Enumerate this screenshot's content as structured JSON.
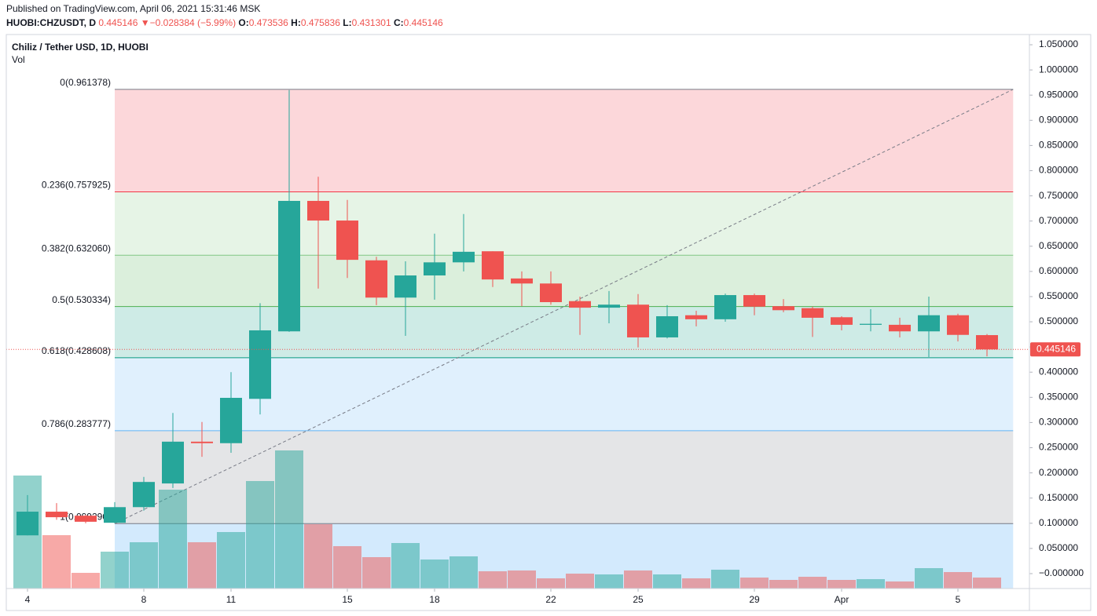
{
  "header": {
    "published": "Published on TradingView.com, April 06, 2021 15:31:46 MSK",
    "symbol": "HUOBI:CHZUSDT, D",
    "last": "0.445146",
    "arrow": "▼",
    "change": "−0.028384 (−5.99%)",
    "o_label": "O:",
    "o": "0.473536",
    "h_label": "H:",
    "h": "0.475836",
    "l_label": "L:",
    "l": "0.431301",
    "c_label": "C:",
    "c": "0.445146"
  },
  "chart_data": {
    "type": "candlestick",
    "title": "Chiliz / Tether USD, 1D, HUOBI",
    "subtitle": "Vol",
    "categories": [
      "4",
      null,
      null,
      null,
      "8",
      null,
      null,
      "11",
      null,
      null,
      null,
      "15",
      null,
      null,
      "18",
      null,
      null,
      null,
      "22",
      null,
      null,
      "25",
      null,
      null,
      null,
      "29",
      null,
      null,
      "Apr",
      null,
      null,
      null,
      "5",
      null
    ],
    "open": [
      0.076,
      0.123,
      0.115,
      0.101,
      0.132,
      0.179,
      0.262,
      0.259,
      0.347,
      0.481,
      0.74,
      0.701,
      0.622,
      0.548,
      0.592,
      0.618,
      0.64,
      0.586,
      0.576,
      0.541,
      0.528,
      0.534,
      0.469,
      0.513,
      0.505,
      0.553,
      0.531,
      0.527,
      0.509,
      0.494,
      0.494,
      0.481,
      0.513,
      0.473536
    ],
    "high": [
      0.156,
      0.14,
      0.117,
      0.142,
      0.192,
      0.319,
      0.301,
      0.4,
      0.537,
      0.96,
      0.788,
      0.742,
      0.629,
      0.62,
      0.675,
      0.714,
      0.64,
      0.6,
      0.6,
      0.55,
      0.561,
      0.555,
      0.533,
      0.522,
      0.556,
      0.556,
      0.545,
      0.53,
      0.511,
      0.525,
      0.508,
      0.55,
      0.516,
      0.475836
    ],
    "low": [
      0.076,
      0.107,
      0.1,
      0.1,
      0.125,
      0.17,
      0.232,
      0.24,
      0.316,
      0.48,
      0.566,
      0.587,
      0.533,
      0.472,
      0.544,
      0.6,
      0.569,
      0.531,
      0.534,
      0.474,
      0.497,
      0.449,
      0.467,
      0.491,
      0.5,
      0.513,
      0.519,
      0.47,
      0.483,
      0.481,
      0.469,
      0.43,
      0.461,
      0.431301
    ],
    "close": [
      0.123,
      0.112,
      0.103,
      0.132,
      0.182,
      0.262,
      0.259,
      0.349,
      0.483,
      0.74,
      0.701,
      0.623,
      0.548,
      0.592,
      0.618,
      0.639,
      0.584,
      0.576,
      0.539,
      0.528,
      0.534,
      0.469,
      0.511,
      0.505,
      0.553,
      0.53,
      0.523,
      0.508,
      0.494,
      0.496,
      0.481,
      0.513,
      0.474,
      0.445146
    ],
    "volume": [
      144,
      68,
      20,
      47,
      59,
      126,
      59,
      72,
      137,
      176,
      82,
      54,
      40,
      58,
      37,
      41,
      22,
      23,
      13,
      19,
      18,
      23,
      18,
      13,
      24,
      14,
      11,
      15,
      11,
      12,
      9,
      26,
      21,
      14
    ],
    "up_color": "#26a69a",
    "down_color": "#ef5350",
    "ylim": [
      -0.0296,
      1.0703
    ],
    "yticks": [
      {
        "value": 0,
        "label": "−0.000000"
      },
      {
        "value": 0.05,
        "label": "0.050000"
      },
      {
        "value": 0.1,
        "label": "0.100000"
      },
      {
        "value": 0.15,
        "label": "0.150000"
      },
      {
        "value": 0.2,
        "label": "0.200000"
      },
      {
        "value": 0.25,
        "label": "0.250000"
      },
      {
        "value": 0.3,
        "label": "0.300000"
      },
      {
        "value": 0.35,
        "label": "0.350000"
      },
      {
        "value": 0.4,
        "label": "0.400000"
      },
      {
        "value": 0.45,
        "label": "0.450000"
      },
      {
        "value": 0.5,
        "label": "0.500000"
      },
      {
        "value": 0.55,
        "label": "0.550000"
      },
      {
        "value": 0.6,
        "label": "0.600000"
      },
      {
        "value": 0.65,
        "label": "0.650000"
      },
      {
        "value": 0.7,
        "label": "0.700000"
      },
      {
        "value": 0.75,
        "label": "0.750000"
      },
      {
        "value": 0.8,
        "label": "0.800000"
      },
      {
        "value": 0.85,
        "label": "0.850000"
      },
      {
        "value": 0.9,
        "label": "0.900000"
      },
      {
        "value": 0.95,
        "label": "0.950000"
      },
      {
        "value": 1.0,
        "label": "1.000000"
      },
      {
        "value": 1.05,
        "label": "1.050000"
      }
    ],
    "grid": false,
    "last_price": {
      "value": 0.445146,
      "label": "0.445146"
    },
    "fib": {
      "anchor_x": [
        3,
        33.9
      ],
      "levels": [
        {
          "value": 0.961378,
          "label": "0(0.961378)",
          "color": "#787b86"
        },
        {
          "value": 0.757925,
          "label": "0.236(0.757925)",
          "color": "#f23645"
        },
        {
          "value": 0.63206,
          "label": "0.382(0.632060)",
          "color": "#81c784"
        },
        {
          "value": 0.530334,
          "label": "0.5(0.530334)",
          "color": "#4caf50"
        },
        {
          "value": 0.428608,
          "label": "0.618(0.428608)",
          "color": "#089981"
        },
        {
          "value": 0.283777,
          "label": "0.786(0.283777)",
          "color": "#64b5f6"
        },
        {
          "value": 0.09929,
          "label": "1(0.099290)",
          "color": "#787b86"
        }
      ],
      "fill_below": "#2196f3"
    }
  }
}
